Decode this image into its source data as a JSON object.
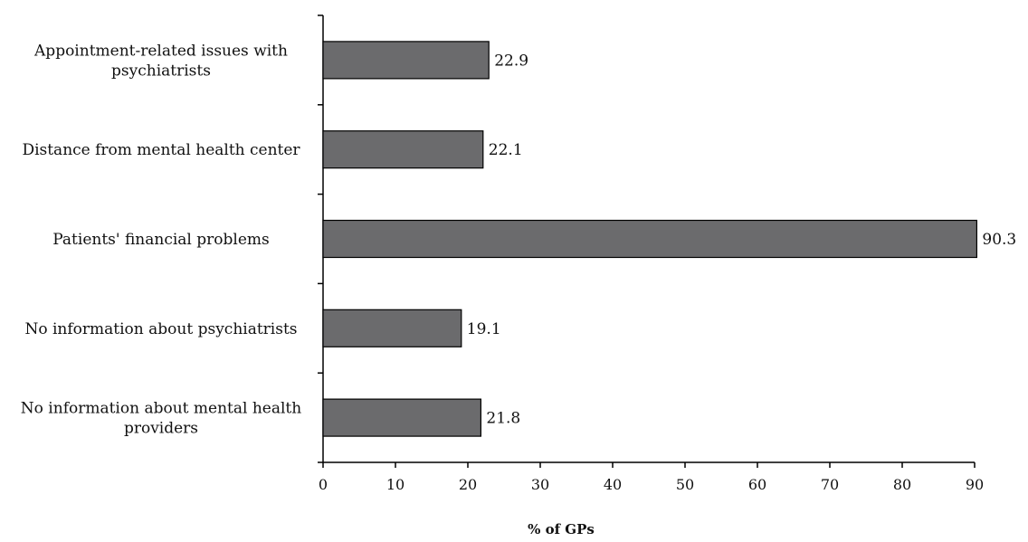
{
  "chart_data": {
    "type": "bar",
    "orientation": "horizontal",
    "title": "",
    "xlabel": "% of GPs",
    "ylabel": "",
    "xlim": [
      0,
      90
    ],
    "x_ticks": [
      "0",
      "10",
      "20",
      "30",
      "40",
      "50",
      "60",
      "70",
      "80",
      "90"
    ],
    "grid": false,
    "legend": "none",
    "bar_color": "#6b6b6d",
    "categories": [
      [
        "Appointment-related issues with",
        "psychiatrists"
      ],
      [
        "Distance from mental health center"
      ],
      [
        "Patients' financial problems"
      ],
      [
        "No information about psychiatrists"
      ],
      [
        "No information about mental health",
        "providers"
      ]
    ],
    "values": [
      22.9,
      22.1,
      90.3,
      19.1,
      21.8
    ],
    "value_labels": [
      "22.9",
      "22.1",
      "90.3",
      "19.1",
      "21.8"
    ]
  }
}
